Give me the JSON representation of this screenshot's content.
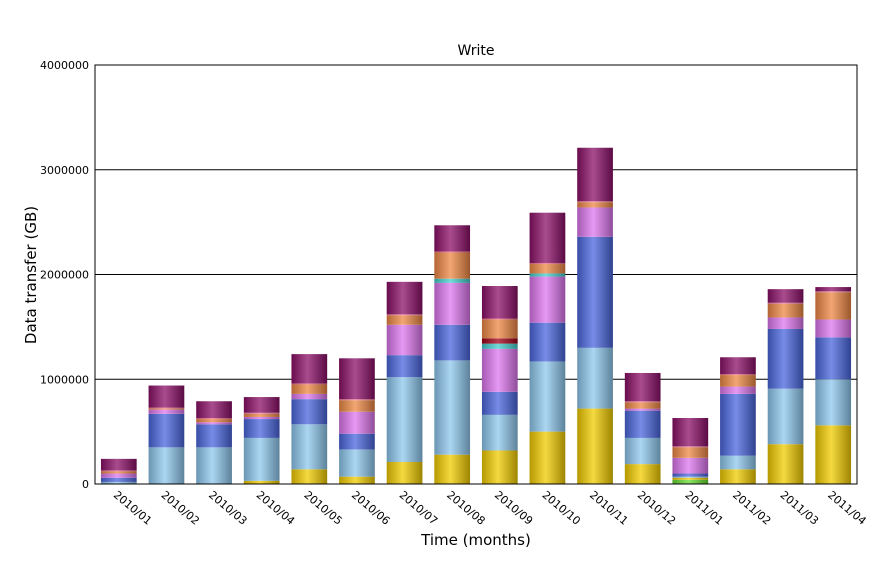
{
  "chart_data": {
    "type": "bar",
    "stacked": true,
    "title": "Write",
    "xlabel": "Time (months)",
    "ylabel": "Data transfer (GB)",
    "ylim": [
      0,
      4000000
    ],
    "yticks": [
      "0",
      "1000000",
      "2000000",
      "3000000",
      "4000000"
    ],
    "ytick_values": [
      0,
      1000000,
      2000000,
      3000000,
      4000000
    ],
    "grid": true,
    "legend": "none",
    "categories": [
      "2010/01",
      "2010/02",
      "2010/03",
      "2010/04",
      "2010/05",
      "2010/06",
      "2010/07",
      "2010/08",
      "2010/09",
      "2010/10",
      "2010/11",
      "2010/12",
      "2011/01",
      "2011/02",
      "2011/03",
      "2011/04"
    ],
    "series": [
      {
        "color": "#66dd33",
        "values": [
          0,
          0,
          0,
          0,
          0,
          0,
          0,
          0,
          0,
          0,
          0,
          0,
          40000,
          0,
          0,
          0
        ]
      },
      {
        "color": "#f2cc00",
        "values": [
          0,
          0,
          0,
          30000,
          140000,
          70000,
          210000,
          280000,
          320000,
          500000,
          720000,
          190000,
          20000,
          140000,
          380000,
          560000
        ]
      },
      {
        "color": "#8fc8ee",
        "values": [
          20000,
          350000,
          350000,
          410000,
          430000,
          260000,
          810000,
          900000,
          340000,
          670000,
          580000,
          250000,
          10000,
          130000,
          530000,
          440000
        ]
      },
      {
        "color": "#4a66dd",
        "values": [
          40000,
          320000,
          220000,
          180000,
          240000,
          150000,
          210000,
          340000,
          220000,
          370000,
          1060000,
          260000,
          30000,
          590000,
          570000,
          400000
        ]
      },
      {
        "color": "#dd77ee",
        "values": [
          40000,
          40000,
          20000,
          20000,
          50000,
          210000,
          290000,
          400000,
          410000,
          440000,
          280000,
          20000,
          150000,
          70000,
          110000,
          170000
        ]
      },
      {
        "color": "#44cccc",
        "values": [
          0,
          0,
          0,
          0,
          0,
          0,
          0,
          40000,
          50000,
          30000,
          0,
          0,
          0,
          0,
          0,
          0
        ]
      },
      {
        "color": "#a00018",
        "values": [
          0,
          0,
          0,
          0,
          0,
          0,
          0,
          0,
          50000,
          0,
          0,
          0,
          0,
          0,
          0,
          0
        ]
      },
      {
        "color": "#ee8844",
        "values": [
          20000,
          10000,
          30000,
          30000,
          90000,
          110000,
          90000,
          250000,
          180000,
          90000,
          50000,
          60000,
          100000,
          110000,
          130000,
          260000
        ]
      },
      {
        "color": "#f27090",
        "values": [
          10000,
          10000,
          10000,
          10000,
          10000,
          10000,
          10000,
          10000,
          10000,
          10000,
          10000,
          10000,
          10000,
          10000,
          10000,
          10000
        ]
      },
      {
        "color": "#8c1068",
        "values": [
          110000,
          210000,
          160000,
          150000,
          280000,
          390000,
          310000,
          250000,
          310000,
          480000,
          510000,
          270000,
          270000,
          160000,
          130000,
          40000
        ]
      }
    ]
  }
}
